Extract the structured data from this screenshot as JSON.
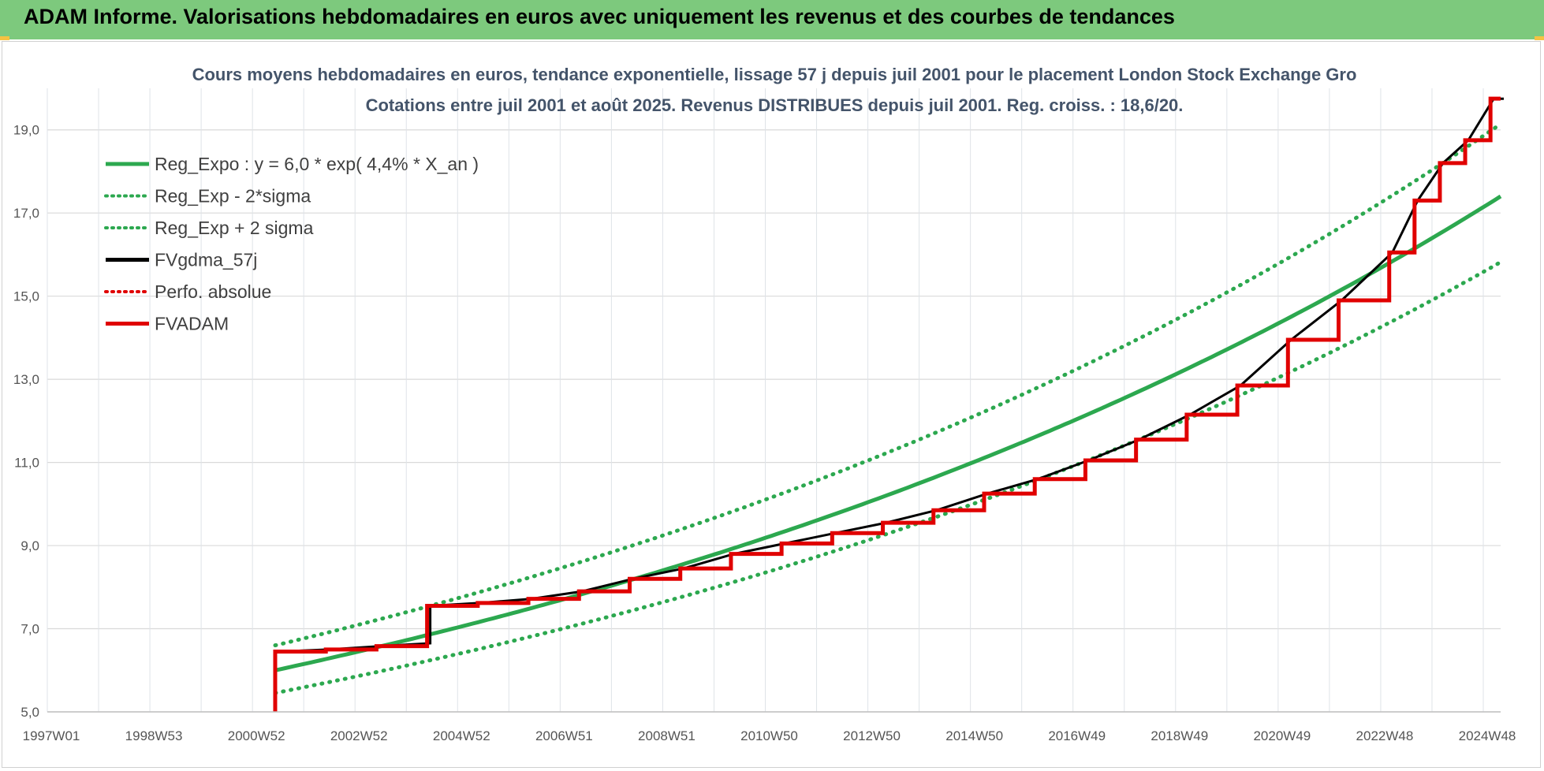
{
  "header": {
    "title": "ADAM Informe. Valorisations hebdomadaires en euros avec uniquement les revenus et des courbes de tendances"
  },
  "chart_data": {
    "type": "line",
    "title": "Cours moyens hebdomadaires en euros, tendance exponentielle, lissage 57 j depuis juil 2001 pour le placement London Stock Exchange Gro",
    "subtitle": "Cotations entre juil 2001 et août 2025. Revenus DISTRIBUES depuis juil 2001. Reg. croiss. : 18,6/20.",
    "x_tick_labels": [
      "1997W01",
      "1998W53",
      "2000W52",
      "2002W52",
      "2004W52",
      "2006W51",
      "2008W51",
      "2010W50",
      "2012W50",
      "2014W50",
      "2016W49",
      "2018W49",
      "2020W49",
      "2022W48",
      "2024W48"
    ],
    "xlim": [
      1997.0,
      2025.7
    ],
    "ylim": [
      5,
      20
    ],
    "y_tick_labels": [
      "5,0",
      "7,0",
      "9,0",
      "11,0",
      "13,0",
      "15,0",
      "17,0",
      "19,0"
    ],
    "y_ticks": [
      5,
      7,
      9,
      11,
      13,
      15,
      17,
      19
    ],
    "grid": true,
    "legend_position": "top-left",
    "regression": {
      "start": 2001.5,
      "end": 2025.7,
      "base": 6.0,
      "rate": 0.044,
      "sigma_factor": 1.1
    },
    "series": [
      {
        "name": "Reg_Expo : y = 6,0 * exp( 4,4% *  X_an )",
        "color": "#2ca84f",
        "style": "solid",
        "role": "reg"
      },
      {
        "name": "Reg_Exp - 2*sigma",
        "color": "#2ca84f",
        "style": "dotted",
        "role": "low"
      },
      {
        "name": "Reg_Exp + 2 sigma",
        "color": "#2ca84f",
        "style": "dotted",
        "role": "high"
      },
      {
        "name": "FVgdma_57j",
        "color": "#000000",
        "style": "solid",
        "role": "smooth"
      },
      {
        "name": "Perfo. absolue",
        "color": "#e00000",
        "style": "dotted",
        "role": "perf"
      },
      {
        "name": "FVADAM",
        "color": "#e00000",
        "style": "solid",
        "role": "fv",
        "points": [
          [
            2001.5,
            5.0
          ],
          [
            2001.5,
            6.45
          ],
          [
            2002.5,
            6.5
          ],
          [
            2003.5,
            6.58
          ],
          [
            2004.5,
            6.65
          ],
          [
            2004.5,
            7.55
          ],
          [
            2005.5,
            7.62
          ],
          [
            2006.5,
            7.72
          ],
          [
            2007.5,
            7.9
          ],
          [
            2008.5,
            8.2
          ],
          [
            2009.5,
            8.45
          ],
          [
            2010.5,
            8.8
          ],
          [
            2011.5,
            9.05
          ],
          [
            2012.5,
            9.3
          ],
          [
            2013.5,
            9.55
          ],
          [
            2014.5,
            9.85
          ],
          [
            2015.5,
            10.25
          ],
          [
            2016.5,
            10.6
          ],
          [
            2017.5,
            11.05
          ],
          [
            2018.5,
            11.55
          ],
          [
            2019.5,
            12.15
          ],
          [
            2020.5,
            12.85
          ],
          [
            2021.5,
            13.95
          ],
          [
            2022.5,
            14.9
          ],
          [
            2023.5,
            16.05
          ],
          [
            2024.0,
            17.3
          ],
          [
            2024.5,
            18.2
          ],
          [
            2025.0,
            18.75
          ],
          [
            2025.5,
            19.75
          ],
          [
            2025.7,
            19.75
          ]
        ]
      }
    ]
  }
}
